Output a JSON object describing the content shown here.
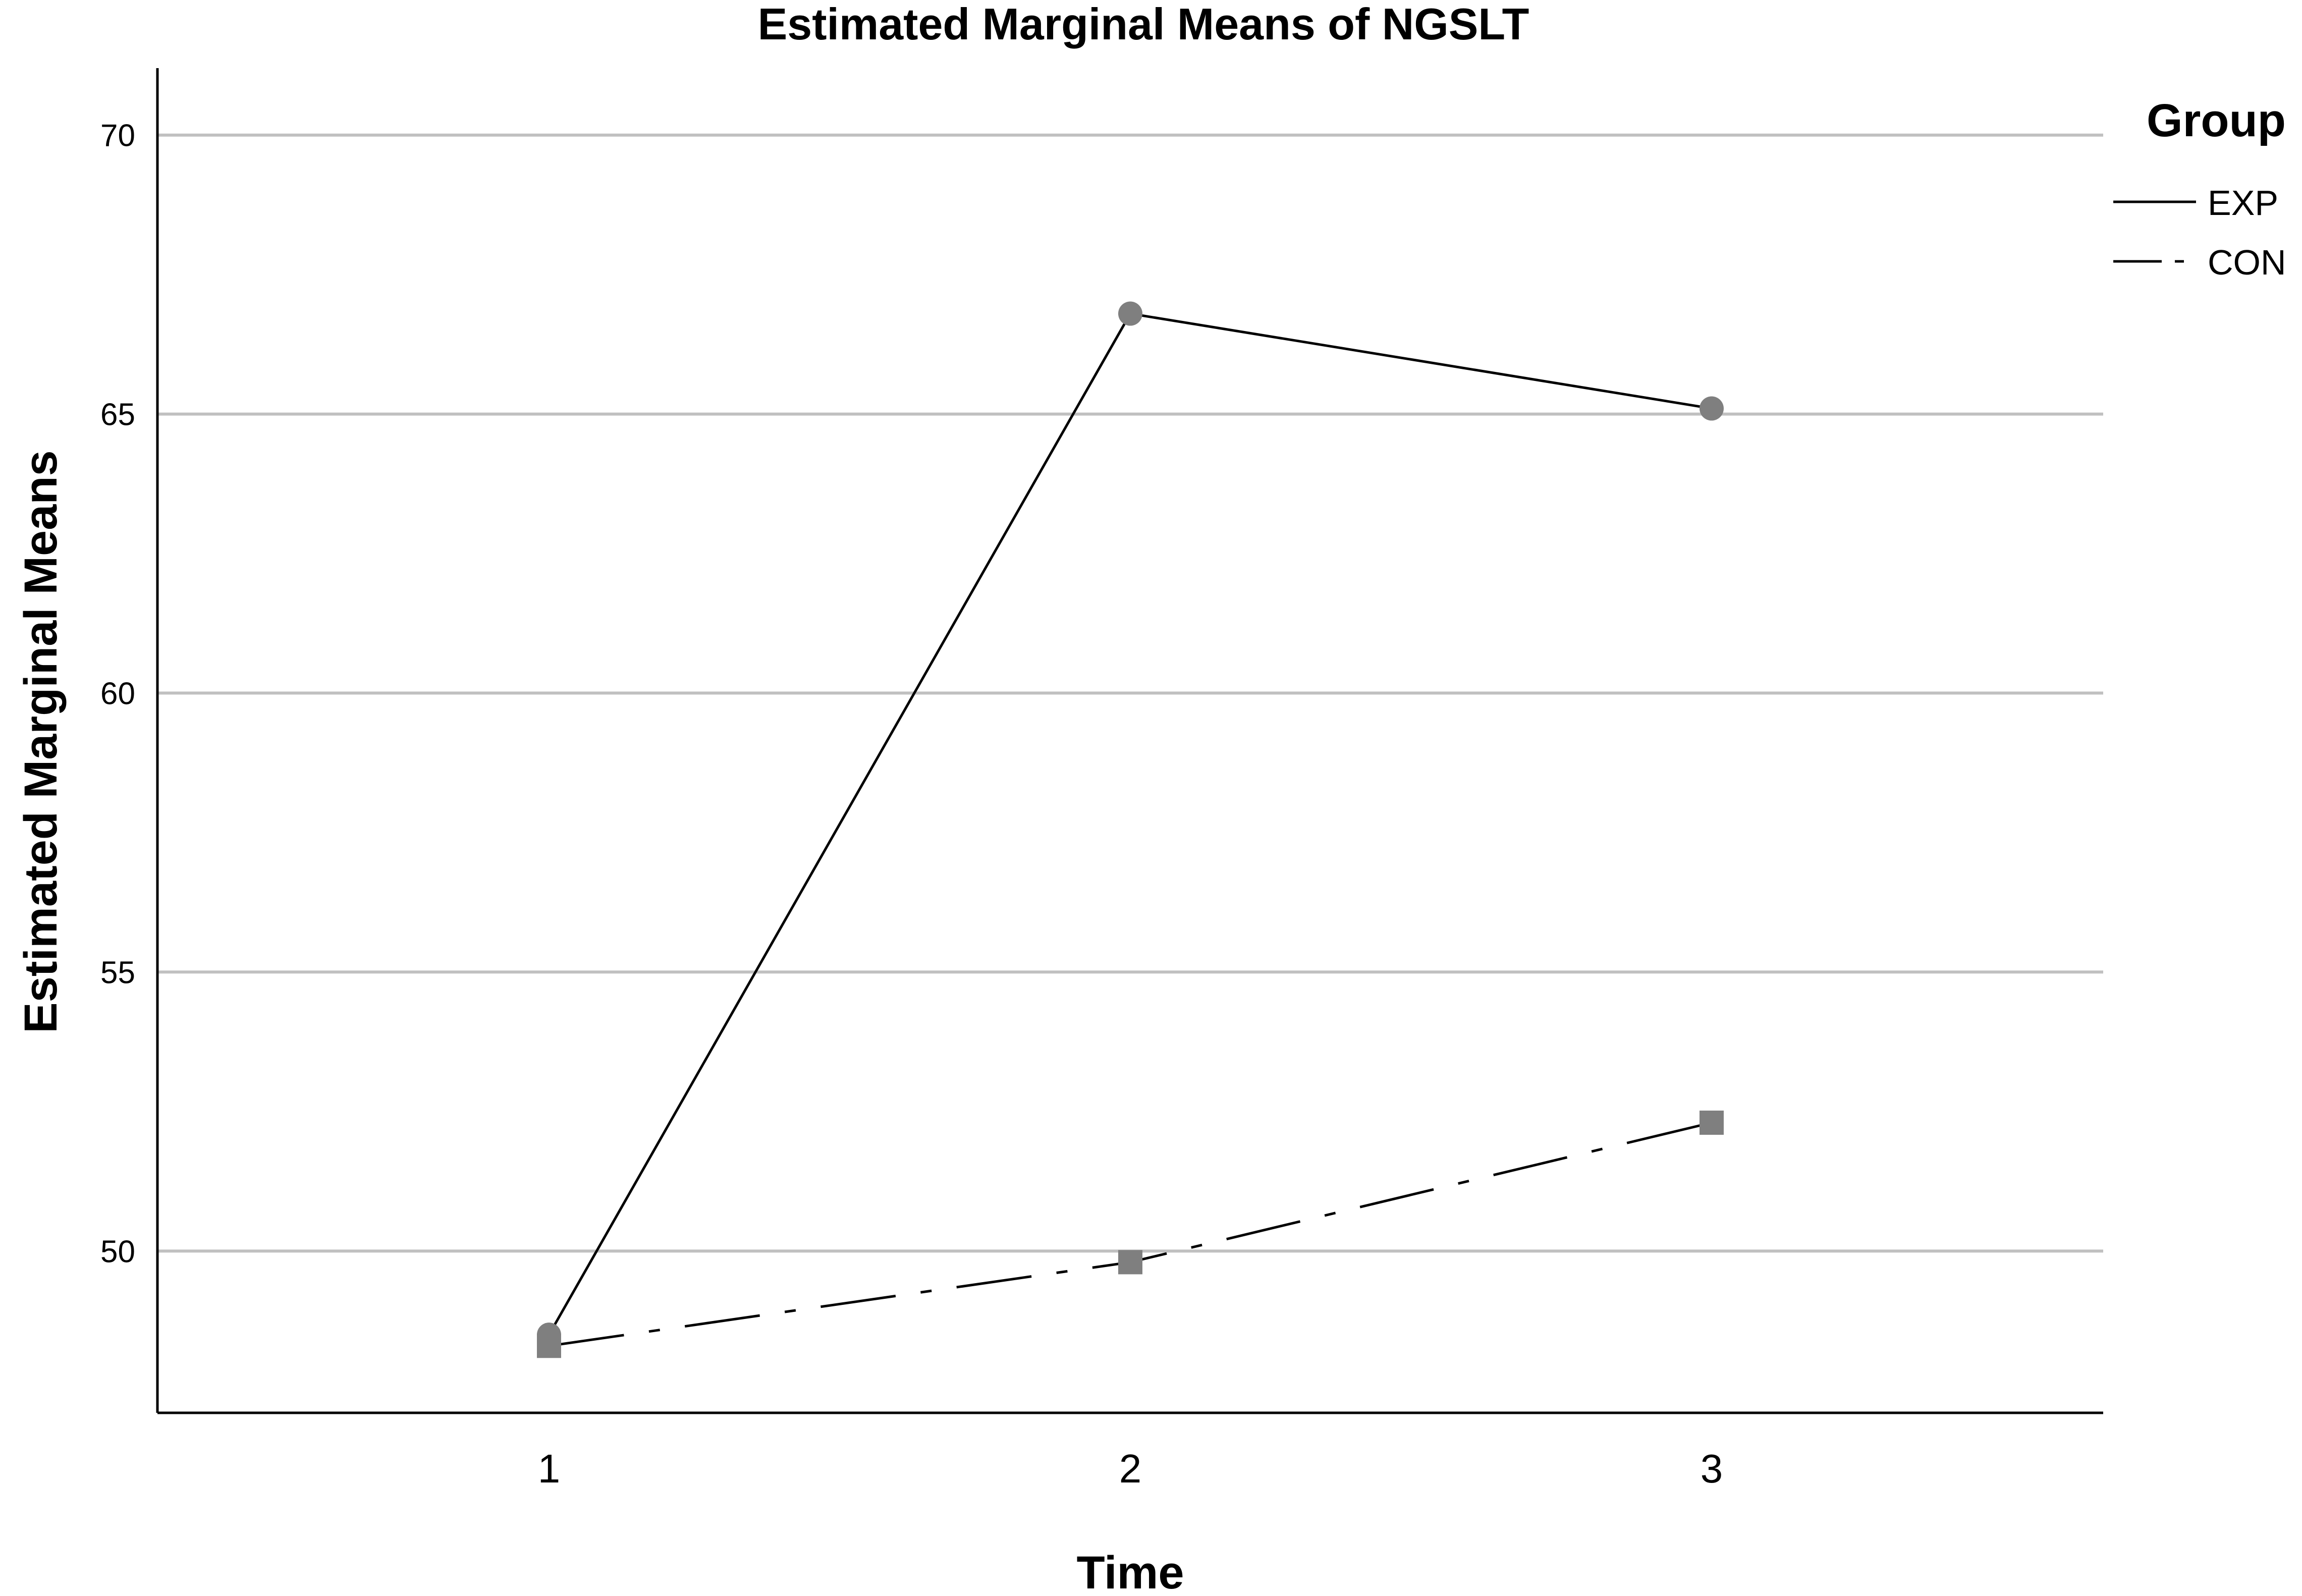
{
  "chart_data": {
    "type": "line",
    "title": "Estimated Marginal Means of NGSLT",
    "xlabel": "Time",
    "ylabel": "Estimated Marginal Means",
    "categories": [
      "1",
      "2",
      "3"
    ],
    "yticks": [
      "50",
      "55",
      "60",
      "65",
      "70"
    ],
    "ylim": [
      47.1,
      71.2
    ],
    "grid": "horizontal",
    "legend": {
      "title": "Group",
      "position": "top-right"
    },
    "series": [
      {
        "name": "EXP",
        "values": [
          48.5,
          66.8,
          65.1
        ],
        "line_style": "solid",
        "marker": "circle",
        "color": "#000000",
        "marker_color": "#7f7f7f"
      },
      {
        "name": "CON",
        "values": [
          48.3,
          49.8,
          52.3
        ],
        "line_style": "dash-dot",
        "marker": "square",
        "color": "#000000",
        "marker_color": "#7f7f7f"
      }
    ],
    "colors": {
      "gridline": "#c0c0c0",
      "axis": "#000000",
      "marker": "#7f7f7f"
    }
  }
}
